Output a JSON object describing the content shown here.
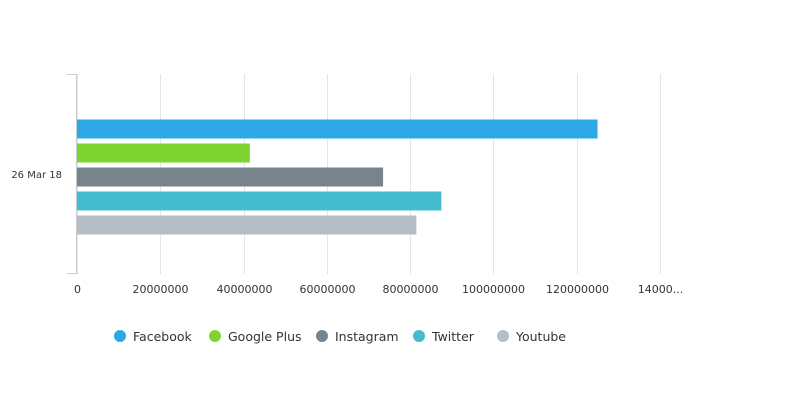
{
  "chart_data": {
    "type": "bar",
    "orientation": "horizontal",
    "categories": [
      "26 Mar 18"
    ],
    "series": [
      {
        "name": "Facebook",
        "values": [
          125000000
        ],
        "color": "#2fa8e6"
      },
      {
        "name": "Google Plus",
        "values": [
          41500000
        ],
        "color": "#7ed52f"
      },
      {
        "name": "Instagram",
        "values": [
          73500000
        ],
        "color": "#77848e"
      },
      {
        "name": "Twitter",
        "values": [
          87500000
        ],
        "color": "#45bccd"
      },
      {
        "name": "Youtube",
        "values": [
          81500000
        ],
        "color": "#b3bec5"
      }
    ],
    "xlim": [
      0,
      140000000
    ],
    "x_ticks": [
      "0",
      "20000000",
      "40000000",
      "60000000",
      "80000000",
      "100000000",
      "120000000",
      "14000..."
    ],
    "grid": true,
    "legend_position": "bottom"
  }
}
